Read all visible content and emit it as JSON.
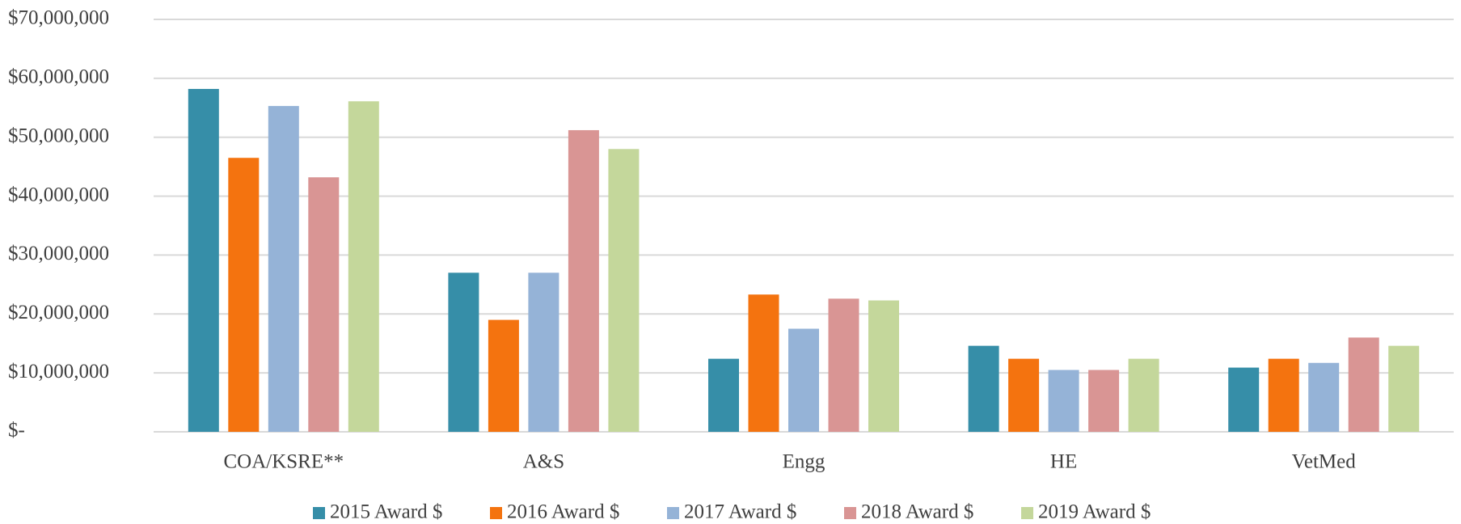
{
  "chart_data": {
    "type": "bar",
    "categories": [
      "COA/KSRE**",
      "A&S",
      "Engg",
      "HE",
      "VetMed"
    ],
    "series": [
      {
        "name": "2015 Award $",
        "color": "#368ea8",
        "values": [
          58200000,
          27000000,
          12400000,
          14600000,
          10900000
        ]
      },
      {
        "name": "2016 Award $",
        "color": "#f4730f",
        "values": [
          46500000,
          19000000,
          23300000,
          12400000,
          12400000
        ]
      },
      {
        "name": "2017 Award $",
        "color": "#95b3d7",
        "values": [
          55300000,
          27000000,
          17500000,
          10500000,
          11700000
        ]
      },
      {
        "name": "2018 Award $",
        "color": "#d99594",
        "values": [
          43200000,
          51200000,
          22600000,
          10500000,
          16000000
        ]
      },
      {
        "name": "2019 Award $",
        "color": "#c4d79b",
        "values": [
          56100000,
          48000000,
          22300000,
          12400000,
          14600000
        ]
      }
    ],
    "ylim": [
      0,
      70000000
    ],
    "yticks": [
      {
        "value": 0,
        "label": "$-"
      },
      {
        "value": 10000000,
        "label": "$10,000,000"
      },
      {
        "value": 20000000,
        "label": "$20,000,000"
      },
      {
        "value": 30000000,
        "label": "$30,000,000"
      },
      {
        "value": 40000000,
        "label": "$40,000,000"
      },
      {
        "value": 50000000,
        "label": "$50,000,000"
      },
      {
        "value": 60000000,
        "label": "$60,000,000"
      },
      {
        "value": 70000000,
        "label": "$70,000,000"
      }
    ],
    "grid": true,
    "legend": "bottom"
  }
}
